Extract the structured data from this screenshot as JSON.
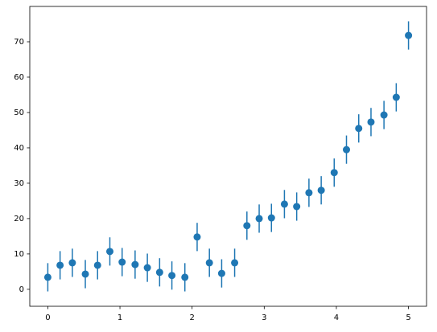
{
  "chart_data": {
    "type": "errorbar",
    "x": [
      0,
      0.17,
      0.34,
      0.52,
      0.69,
      0.86,
      1.03,
      1.21,
      1.38,
      1.55,
      1.72,
      1.9,
      2.07,
      2.24,
      2.41,
      2.59,
      2.76,
      2.93,
      3.1,
      3.28,
      3.45,
      3.62,
      3.79,
      3.97,
      4.14,
      4.31,
      4.48,
      4.66,
      4.83,
      5
    ],
    "series": [
      {
        "color": "#1f77b4",
        "values": [
          3.4,
          6.8,
          7.5,
          4.3,
          6.8,
          10.7,
          7.7,
          7.0,
          6.1,
          4.8,
          3.9,
          3.4,
          14.8,
          7.5,
          4.5,
          7.5,
          18.0,
          20.0,
          20.2,
          24.1,
          23.4,
          27.3,
          28.0,
          33.0,
          39.5,
          45.5,
          47.3,
          49.3,
          54.3,
          71.8
        ],
        "errors": [
          4,
          4,
          4,
          4,
          4,
          4,
          4,
          4,
          4,
          4,
          4,
          4,
          4,
          4,
          4,
          4,
          4,
          4,
          4,
          4,
          4,
          4,
          4,
          4,
          4,
          4,
          4,
          4,
          4,
          4
        ]
      }
    ],
    "xlim": [
      -0.25,
      5.25
    ],
    "ylim": [
      -4.8,
      80
    ],
    "xticks": [
      0,
      1,
      2,
      3,
      4,
      5
    ],
    "yticks": [
      0,
      10,
      20,
      30,
      40,
      50,
      60,
      70
    ]
  }
}
